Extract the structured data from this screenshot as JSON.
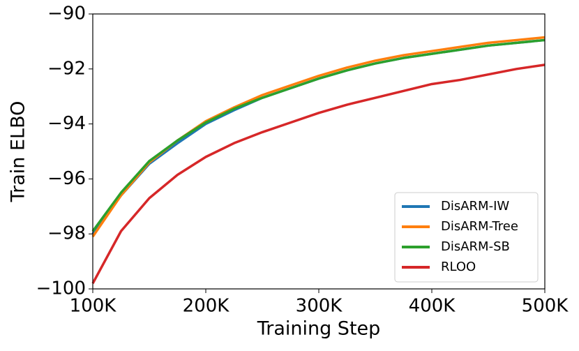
{
  "chart_data": {
    "type": "line",
    "xlabel": "Training Step",
    "ylabel": "Train ELBO",
    "x": [
      100000,
      125000,
      150000,
      175000,
      200000,
      225000,
      250000,
      275000,
      300000,
      325000,
      350000,
      375000,
      400000,
      425000,
      450000,
      475000,
      500000
    ],
    "series": [
      {
        "name": "DisARM-IW",
        "color": "#1f77b4",
        "values": [
          -98.0,
          -96.6,
          -95.45,
          -94.7,
          -94.0,
          -93.5,
          -93.05,
          -92.7,
          -92.35,
          -92.05,
          -91.8,
          -91.6,
          -91.45,
          -91.3,
          -91.15,
          -91.05,
          -90.95
        ]
      },
      {
        "name": "DisARM-Tree",
        "color": "#ff7f0e",
        "values": [
          -98.1,
          -96.6,
          -95.4,
          -94.6,
          -93.9,
          -93.4,
          -92.95,
          -92.6,
          -92.25,
          -91.95,
          -91.7,
          -91.5,
          -91.35,
          -91.2,
          -91.05,
          -90.95,
          -90.85
        ]
      },
      {
        "name": "DisARM-SB",
        "color": "#2ca02c",
        "values": [
          -97.9,
          -96.5,
          -95.35,
          -94.6,
          -93.95,
          -93.45,
          -93.05,
          -92.7,
          -92.35,
          -92.05,
          -91.8,
          -91.6,
          -91.45,
          -91.3,
          -91.15,
          -91.05,
          -90.95
        ]
      },
      {
        "name": "RLOO",
        "color": "#d62728",
        "values": [
          -99.8,
          -97.9,
          -96.7,
          -95.85,
          -95.2,
          -94.7,
          -94.3,
          -93.95,
          -93.6,
          -93.3,
          -93.05,
          -92.8,
          -92.55,
          -92.4,
          -92.2,
          -92.0,
          -91.85
        ]
      }
    ],
    "xlim": [
      100000,
      500000
    ],
    "xticks": [
      {
        "value": 100000,
        "label": "100K"
      },
      {
        "value": 200000,
        "label": "200K"
      },
      {
        "value": 300000,
        "label": "300K"
      },
      {
        "value": 400000,
        "label": "400K"
      },
      {
        "value": 500000,
        "label": "500K"
      }
    ],
    "ylim": [
      -100,
      -90
    ],
    "yticks": [
      {
        "value": -100,
        "label": "−100"
      },
      {
        "value": -98,
        "label": "−98"
      },
      {
        "value": -96,
        "label": "−96"
      },
      {
        "value": -94,
        "label": "−94"
      },
      {
        "value": -92,
        "label": "−92"
      },
      {
        "value": -90,
        "label": "−90"
      }
    ],
    "legend": "lower right"
  }
}
